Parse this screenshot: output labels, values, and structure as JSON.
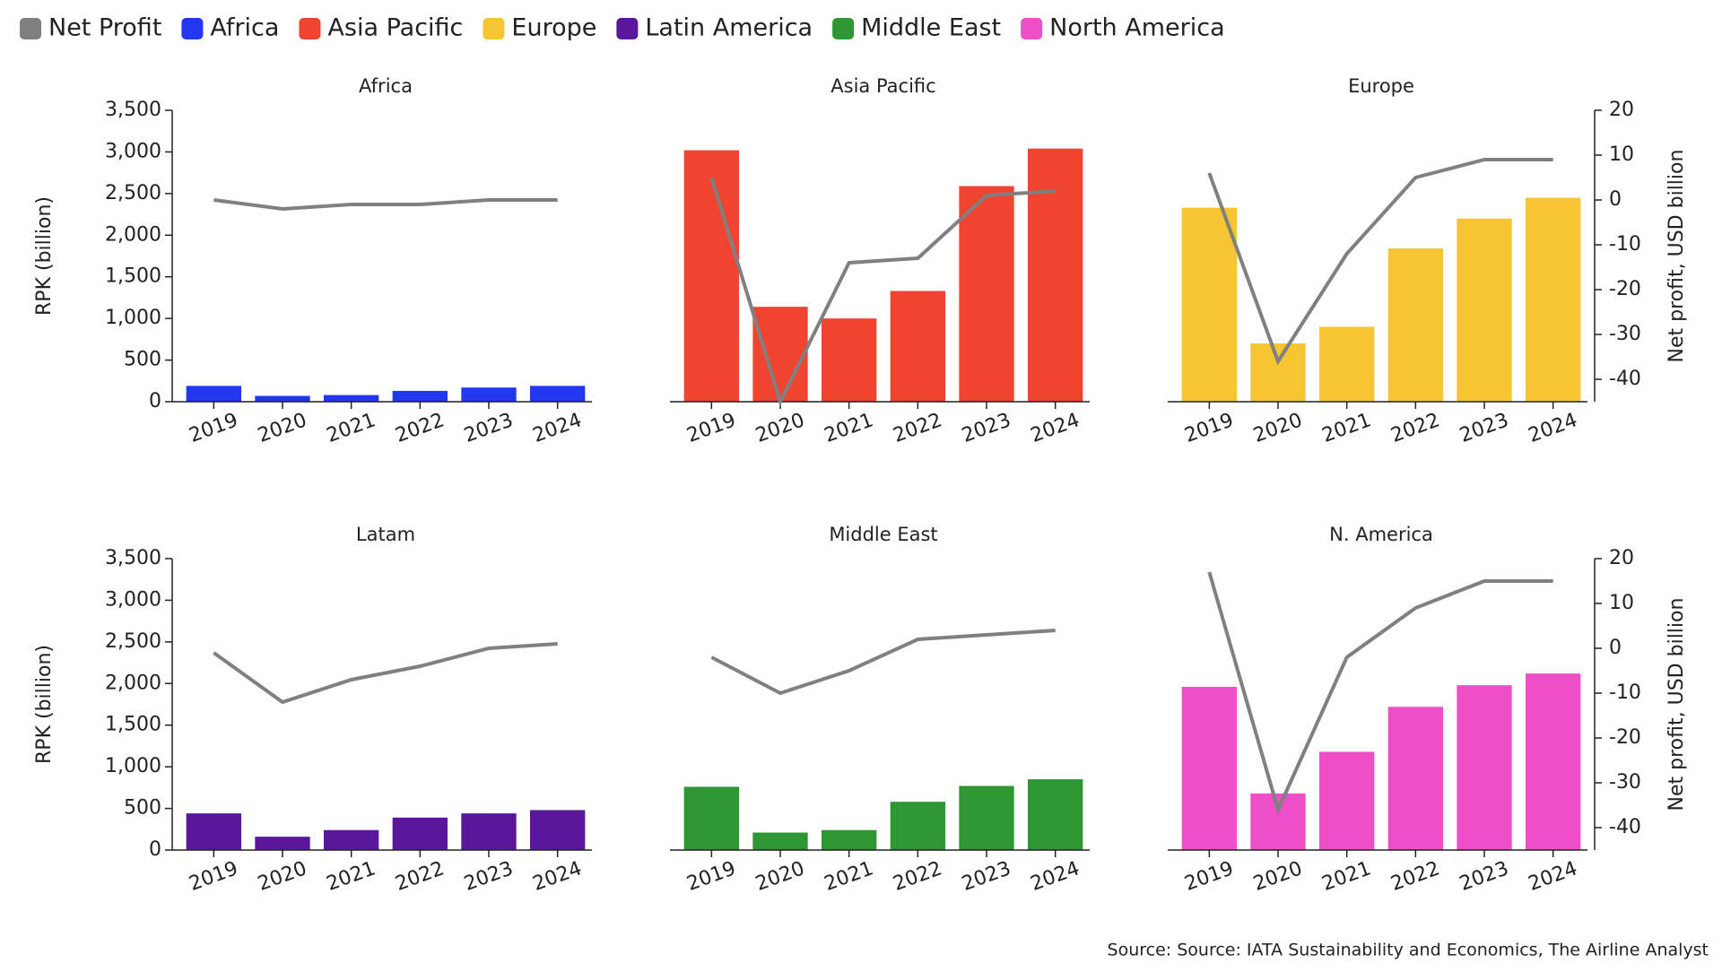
{
  "legend": [
    {
      "name": "Net Profit",
      "color": "#808080"
    },
    {
      "name": "Africa",
      "color": "#2137f0"
    },
    {
      "name": "Asia Pacific",
      "color": "#ef4530"
    },
    {
      "name": "Europe",
      "color": "#f7c531"
    },
    {
      "name": "Latin America",
      "color": "#5b169e"
    },
    {
      "name": "Middle East",
      "color": "#2e9632"
    },
    {
      "name": "North America",
      "color": "#ee4ec8"
    }
  ],
  "y_axis": {
    "label": "RPK (billion)",
    "lim": [
      0,
      3500
    ],
    "ticks": [
      0,
      500,
      {
        "value": 1000,
        "label": "1,000"
      },
      {
        "value": 1500,
        "label": "1,500"
      },
      {
        "value": 2000,
        "label": "2,000"
      },
      {
        "value": 2500,
        "label": "2,500"
      },
      {
        "value": 3000,
        "label": "3,000"
      },
      {
        "value": 3500,
        "label": "3,500"
      }
    ]
  },
  "y2_axis": {
    "label": "Net profit, USD billion",
    "lim": [
      -45,
      20
    ],
    "ticks": [
      20,
      10,
      0,
      -10,
      -20,
      -30,
      -40
    ]
  },
  "chart_data": [
    {
      "type": "bar",
      "title": "Africa",
      "categories": [
        "2019",
        "2020",
        "2021",
        "2022",
        "2023",
        "2024"
      ],
      "values": [
        190,
        70,
        80,
        130,
        170,
        190
      ],
      "color": "#2137f0",
      "line": {
        "type": "line",
        "axis": "y2",
        "color": "#808080",
        "values": [
          0,
          -2,
          -1,
          -1,
          0,
          0
        ]
      }
    },
    {
      "type": "bar",
      "title": "Asia Pacific",
      "categories": [
        "2019",
        "2020",
        "2021",
        "2022",
        "2023",
        "2024"
      ],
      "values": [
        3020,
        1140,
        1000,
        1330,
        2590,
        3040
      ],
      "color": "#ef4530",
      "line": {
        "type": "line",
        "axis": "y2",
        "color": "#808080",
        "values": [
          5,
          -45,
          -14,
          -13,
          1,
          2
        ]
      }
    },
    {
      "type": "bar",
      "title": "Europe",
      "categories": [
        "2019",
        "2020",
        "2021",
        "2022",
        "2023",
        "2024"
      ],
      "values": [
        2330,
        700,
        900,
        1840,
        2200,
        2450
      ],
      "color": "#f7c531",
      "line": {
        "type": "line",
        "axis": "y2",
        "color": "#808080",
        "values": [
          6,
          -36,
          -12,
          5,
          9,
          9
        ]
      }
    },
    {
      "type": "bar",
      "title": "Latam",
      "categories": [
        "2019",
        "2020",
        "2021",
        "2022",
        "2023",
        "2024"
      ],
      "values": [
        440,
        160,
        240,
        390,
        440,
        480
      ],
      "color": "#5b169e",
      "line": {
        "type": "line",
        "axis": "y2",
        "color": "#808080",
        "values": [
          -1,
          -12,
          -7,
          -4,
          0,
          1
        ]
      }
    },
    {
      "type": "bar",
      "title": "Middle East",
      "categories": [
        "2019",
        "2020",
        "2021",
        "2022",
        "2023",
        "2024"
      ],
      "values": [
        760,
        210,
        240,
        580,
        770,
        850
      ],
      "color": "#2e9632",
      "line": {
        "type": "line",
        "axis": "y2",
        "color": "#808080",
        "values": [
          -2,
          -10,
          -5,
          2,
          3,
          4
        ]
      }
    },
    {
      "type": "bar",
      "title": "N. America",
      "categories": [
        "2019",
        "2020",
        "2021",
        "2022",
        "2023",
        "2024"
      ],
      "values": [
        1960,
        680,
        1180,
        1720,
        1980,
        2120
      ],
      "color": "#ee4ec8",
      "line": {
        "type": "line",
        "axis": "y2",
        "color": "#808080",
        "values": [
          17,
          -36,
          -2,
          9,
          15,
          15
        ]
      }
    }
  ],
  "source": "Source: Source: IATA Sustainability and Economics, The Airline Analyst"
}
